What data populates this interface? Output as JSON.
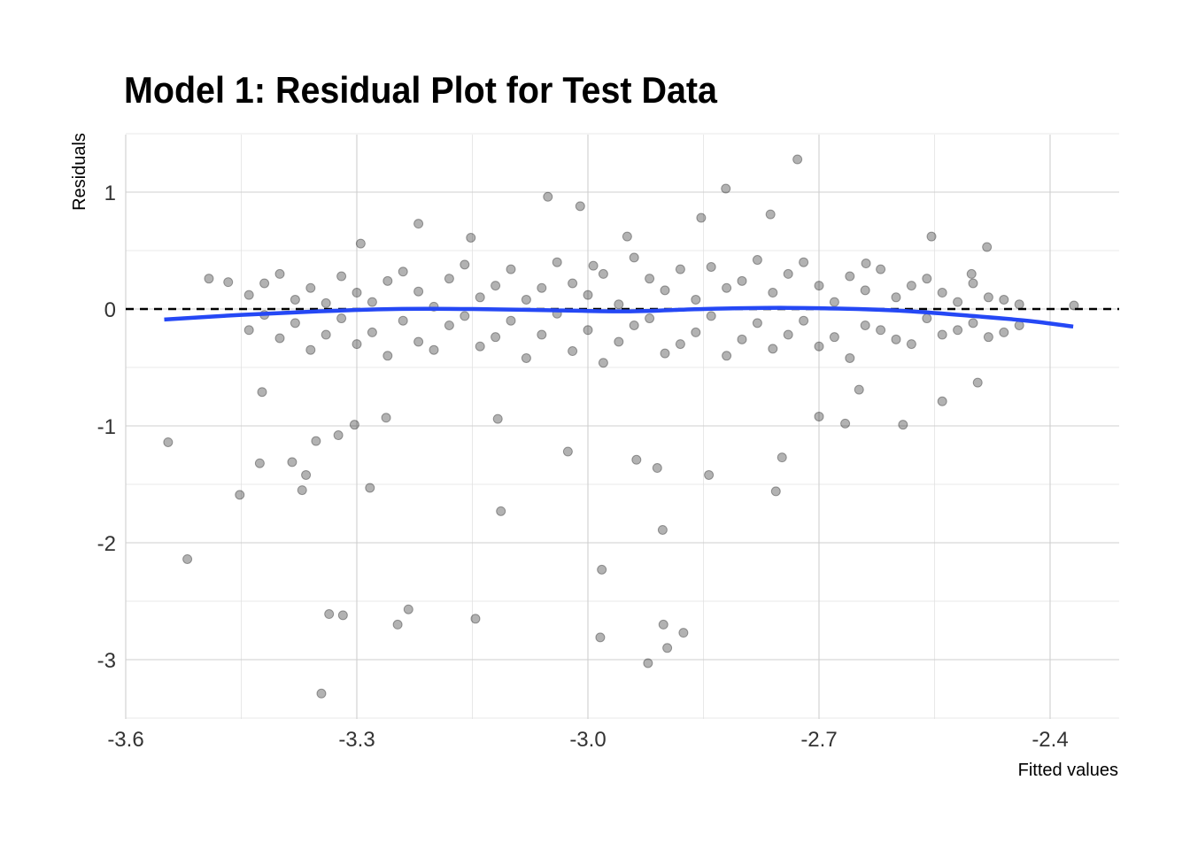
{
  "chart_data": {
    "type": "scatter",
    "title": "Model 1: Residual Plot for Test Data",
    "xlabel": "Fitted values",
    "ylabel": "Residuals",
    "xlim": [
      -3.6,
      -2.27
    ],
    "ylim": [
      -3.5,
      1.5
    ],
    "xticks": [
      -3.6,
      -3.3,
      -3.0,
      -2.7,
      -2.4
    ],
    "xtick_labels": [
      "-3.6",
      "-3.3",
      "-3.0",
      "-2.7",
      "-2.4"
    ],
    "yticks": [
      1,
      0,
      -1,
      -2,
      -3
    ],
    "ytick_labels": [
      "1",
      "0",
      "-1",
      "-2",
      "-3"
    ],
    "grid": true,
    "point_color": "#000000",
    "point_opacity": 0.3,
    "reference_line": {
      "y": 0,
      "style": "dashed",
      "color": "#000000"
    },
    "smooth": {
      "color": "#2548F5",
      "x": [
        -3.55,
        -3.45,
        -3.35,
        -3.25,
        -3.15,
        -3.05,
        -2.95,
        -2.85,
        -2.75,
        -2.65,
        -2.58,
        -2.5,
        -2.43,
        -2.37
      ],
      "y": [
        -0.09,
        -0.05,
        -0.02,
        0.0,
        0.0,
        -0.01,
        -0.02,
        0.0,
        0.01,
        0.0,
        -0.02,
        -0.06,
        -0.1,
        -0.15
      ]
    },
    "points": [
      [
        -3.545,
        -1.14
      ],
      [
        -3.52,
        -2.14
      ],
      [
        -3.452,
        -1.59
      ],
      [
        -3.426,
        -1.32
      ],
      [
        -3.336,
        -2.61
      ],
      [
        -3.318,
        -2.62
      ],
      [
        -3.346,
        -3.29
      ],
      [
        -3.247,
        -2.7
      ],
      [
        -3.233,
        -2.57
      ],
      [
        -3.146,
        -2.65
      ],
      [
        -3.113,
        -1.73
      ],
      [
        -3.283,
        -1.53
      ],
      [
        -3.371,
        -1.55
      ],
      [
        -3.366,
        -1.42
      ],
      [
        -3.384,
        -1.31
      ],
      [
        -3.353,
        -1.13
      ],
      [
        -3.324,
        -1.08
      ],
      [
        -2.982,
        -2.23
      ],
      [
        -2.984,
        -2.81
      ],
      [
        -2.922,
        -3.03
      ],
      [
        -2.902,
        -2.7
      ],
      [
        -2.897,
        -2.9
      ],
      [
        -2.876,
        -2.77
      ],
      [
        -2.903,
        -1.89
      ],
      [
        -2.91,
        -1.36
      ],
      [
        -2.937,
        -1.29
      ],
      [
        -3.026,
        -1.22
      ],
      [
        -2.756,
        -1.56
      ],
      [
        -2.748,
        -1.27
      ],
      [
        -2.843,
        -1.42
      ],
      [
        -2.728,
        1.28
      ],
      [
        -2.821,
        1.03
      ],
      [
        -3.052,
        0.96
      ],
      [
        -3.22,
        0.73
      ],
      [
        -2.369,
        0.03
      ],
      [
        -2.502,
        0.3
      ],
      [
        -2.591,
        -0.99
      ],
      [
        -2.54,
        -0.79
      ],
      [
        -2.494,
        -0.63
      ],
      [
        -3.492,
        0.26
      ],
      [
        -3.467,
        0.23
      ],
      [
        -3.295,
        0.56
      ],
      [
        -3.152,
        0.61
      ],
      [
        -3.01,
        0.88
      ],
      [
        -2.853,
        0.78
      ],
      [
        -2.763,
        0.81
      ],
      [
        -2.554,
        0.62
      ],
      [
        -2.482,
        0.53
      ],
      [
        -2.648,
        -0.69
      ],
      [
        -2.7,
        -0.92
      ],
      [
        -2.666,
        -0.98
      ],
      [
        -3.262,
        -0.93
      ],
      [
        -3.303,
        -0.99
      ],
      [
        -3.423,
        -0.71
      ],
      [
        -3.117,
        -0.94
      ],
      [
        -2.639,
        0.39
      ],
      [
        -2.993,
        0.37
      ],
      [
        -2.949,
        0.62
      ],
      [
        -3.44,
        0.12
      ],
      [
        -3.44,
        -0.18
      ],
      [
        -3.42,
        -0.05
      ],
      [
        -3.42,
        0.22
      ],
      [
        -3.4,
        0.3
      ],
      [
        -3.4,
        -0.25
      ],
      [
        -3.38,
        -0.12
      ],
      [
        -3.38,
        0.08
      ],
      [
        -3.36,
        0.18
      ],
      [
        -3.36,
        -0.35
      ],
      [
        -3.34,
        -0.22
      ],
      [
        -3.34,
        0.05
      ],
      [
        -3.32,
        0.28
      ],
      [
        -3.32,
        -0.08
      ],
      [
        -3.3,
        -0.3
      ],
      [
        -3.3,
        0.14
      ],
      [
        -3.28,
        0.06
      ],
      [
        -3.28,
        -0.2
      ],
      [
        -3.26,
        0.24
      ],
      [
        -3.26,
        -0.4
      ],
      [
        -3.24,
        -0.1
      ],
      [
        -3.24,
        0.32
      ],
      [
        -3.22,
        0.15
      ],
      [
        -3.22,
        -0.28
      ],
      [
        -3.2,
        -0.35
      ],
      [
        -3.2,
        0.02
      ],
      [
        -3.18,
        0.26
      ],
      [
        -3.18,
        -0.14
      ],
      [
        -3.16,
        -0.06
      ],
      [
        -3.16,
        0.38
      ],
      [
        -3.14,
        0.1
      ],
      [
        -3.14,
        -0.32
      ],
      [
        -3.12,
        -0.24
      ],
      [
        -3.12,
        0.2
      ],
      [
        -3.1,
        0.34
      ],
      [
        -3.1,
        -0.1
      ],
      [
        -3.08,
        -0.42
      ],
      [
        -3.08,
        0.08
      ],
      [
        -3.06,
        0.18
      ],
      [
        -3.06,
        -0.22
      ],
      [
        -3.04,
        -0.04
      ],
      [
        -3.04,
        0.4
      ],
      [
        -3.02,
        0.22
      ],
      [
        -3.02,
        -0.36
      ],
      [
        -3.0,
        -0.18
      ],
      [
        -3.0,
        0.12
      ],
      [
        -2.98,
        0.3
      ],
      [
        -2.98,
        -0.46
      ],
      [
        -2.96,
        -0.28
      ],
      [
        -2.96,
        0.04
      ],
      [
        -2.94,
        0.44
      ],
      [
        -2.94,
        -0.14
      ],
      [
        -2.92,
        -0.08
      ],
      [
        -2.92,
        0.26
      ],
      [
        -2.9,
        0.16
      ],
      [
        -2.9,
        -0.38
      ],
      [
        -2.88,
        -0.3
      ],
      [
        -2.88,
        0.34
      ],
      [
        -2.86,
        0.08
      ],
      [
        -2.86,
        -0.2
      ],
      [
        -2.84,
        0.36
      ],
      [
        -2.84,
        -0.06
      ],
      [
        -2.82,
        -0.4
      ],
      [
        -2.82,
        0.18
      ],
      [
        -2.8,
        0.24
      ],
      [
        -2.8,
        -0.26
      ],
      [
        -2.78,
        -0.12
      ],
      [
        -2.78,
        0.42
      ],
      [
        -2.76,
        0.14
      ],
      [
        -2.76,
        -0.34
      ],
      [
        -2.74,
        -0.22
      ],
      [
        -2.74,
        0.3
      ],
      [
        -2.72,
        0.4
      ],
      [
        -2.72,
        -0.1
      ],
      [
        -2.7,
        -0.32
      ],
      [
        -2.7,
        0.2
      ],
      [
        -2.68,
        0.06
      ],
      [
        -2.68,
        -0.24
      ],
      [
        -2.66,
        0.28
      ],
      [
        -2.66,
        -0.42
      ],
      [
        -2.64,
        -0.14
      ],
      [
        -2.64,
        0.16
      ],
      [
        -2.62,
        0.34
      ],
      [
        -2.62,
        -0.18
      ],
      [
        -2.6,
        -0.26
      ],
      [
        -2.6,
        0.1
      ],
      [
        -2.58,
        0.2
      ],
      [
        -2.58,
        -0.3
      ],
      [
        -2.56,
        -0.08
      ],
      [
        -2.56,
        0.26
      ],
      [
        -2.54,
        0.14
      ],
      [
        -2.54,
        -0.22
      ],
      [
        -2.52,
        -0.18
      ],
      [
        -2.52,
        0.06
      ],
      [
        -2.5,
        0.22
      ],
      [
        -2.5,
        -0.12
      ],
      [
        -2.48,
        -0.24
      ],
      [
        -2.48,
        0.1
      ],
      [
        -2.46,
        0.08
      ],
      [
        -2.46,
        -0.2
      ],
      [
        -2.44,
        -0.14
      ],
      [
        -2.44,
        0.04
      ]
    ]
  }
}
